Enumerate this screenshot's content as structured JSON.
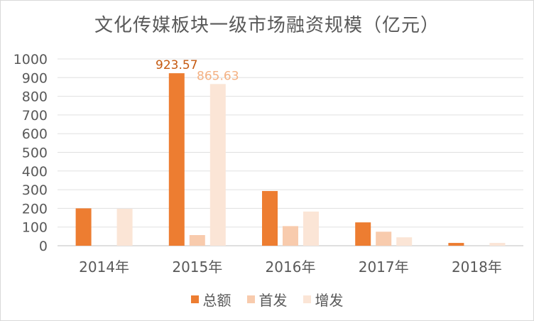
{
  "chart_data": {
    "type": "bar",
    "title": "文化传媒板块一级市场融资规模（亿元）",
    "categories": [
      "2014年",
      "2015年",
      "2016年",
      "2017年",
      "2018年"
    ],
    "ylim": [
      0,
      1000
    ],
    "yticks": [
      "0",
      "100",
      "200",
      "300",
      "400",
      "500",
      "600",
      "700",
      "800",
      "900",
      "1000"
    ],
    "grid": true,
    "legend_position": "bottom",
    "series": [
      {
        "name": "总额",
        "color": "#ED7D31",
        "values": [
          200,
          923.57,
          293,
          125,
          15
        ],
        "labels": [
          "",
          "923.57",
          "",
          "",
          ""
        ]
      },
      {
        "name": "首发",
        "color": "#F8CBAD",
        "values": [
          0,
          57,
          105,
          75,
          0
        ],
        "labels": [
          "",
          "",
          "",
          "",
          ""
        ]
      },
      {
        "name": "增发",
        "color": "#FBE5D6",
        "values": [
          198,
          865.63,
          183,
          45,
          15
        ],
        "labels": [
          "",
          "865.63",
          "",
          "",
          ""
        ]
      }
    ],
    "label_colors": [
      "#C55A11",
      "#F4B183",
      "#F4B183"
    ]
  }
}
